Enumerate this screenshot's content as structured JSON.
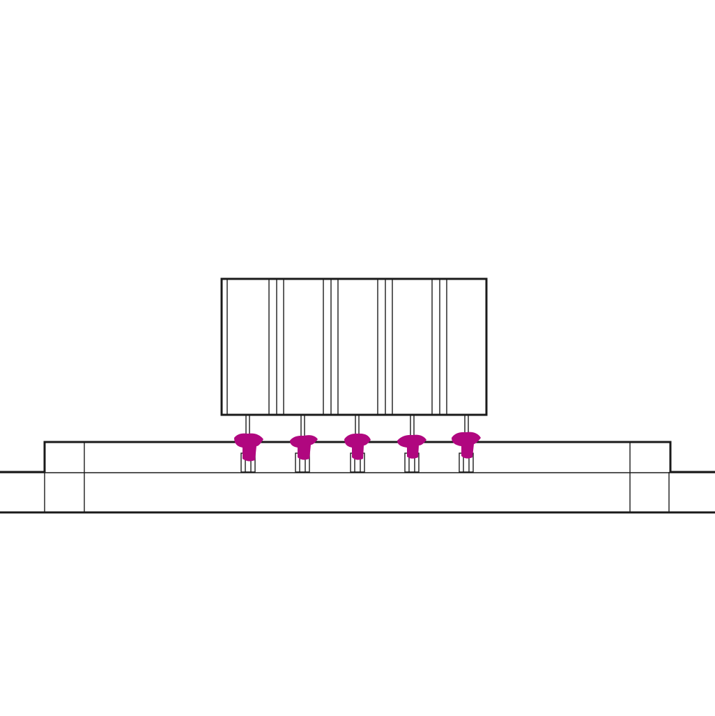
{
  "diagram": {
    "subject": "component-soldered-to-circuit-board",
    "pin_count": 5,
    "colors": {
      "line": "#1a1a1a",
      "background": "#ffffff",
      "solder": "#b0077f"
    },
    "icons": {
      "solder_joint": "solder-blob-icon"
    }
  }
}
